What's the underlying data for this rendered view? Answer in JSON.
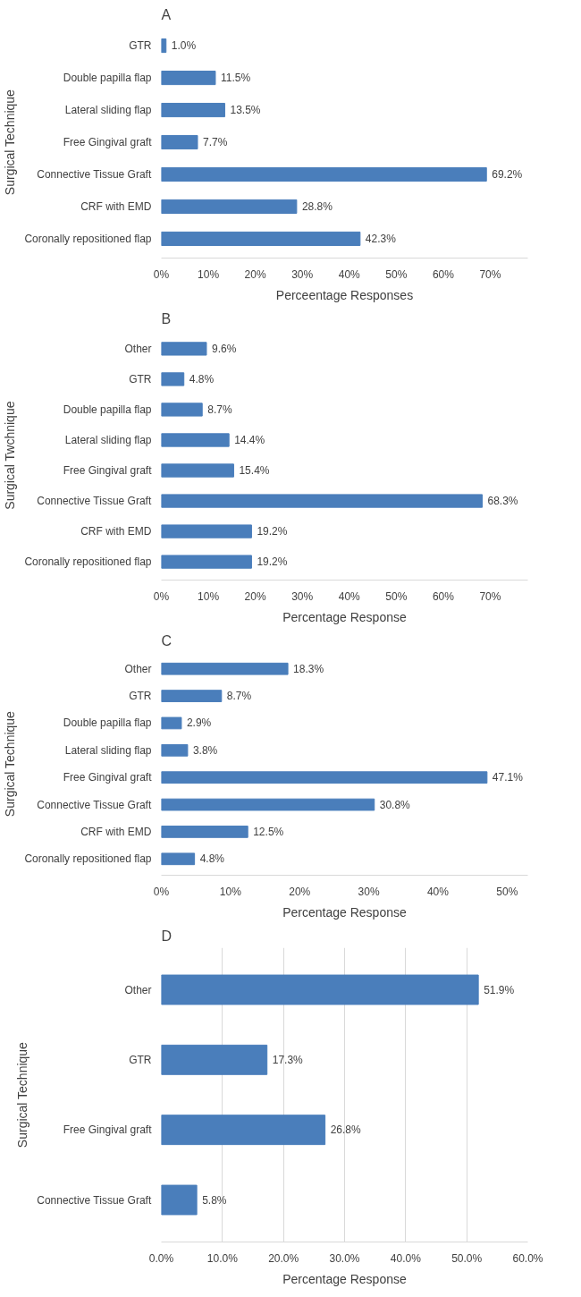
{
  "chart_data": [
    {
      "type": "bar",
      "orientation": "horizontal",
      "title": "A",
      "ylabel": "Surgical Technique",
      "xlabel": "Perceentage Responses",
      "color": "#4a7ebb",
      "grid": false,
      "categories": [
        "GTR",
        "Double papilla flap",
        "Lateral sliding flap",
        "Free Gingival graft",
        "Connective Tissue Graft",
        "CRF with EMD",
        "Coronally repositioned flap"
      ],
      "values": [
        1.0,
        11.5,
        13.5,
        7.7,
        69.2,
        28.8,
        42.3
      ],
      "value_labels": [
        "1.0%",
        "11.5%",
        "13.5%",
        "7.7%",
        "69.2%",
        "28.8%",
        "42.3%"
      ],
      "xlim": [
        0,
        78
      ],
      "xticks": [
        {
          "value": 0,
          "label": "0%"
        },
        {
          "value": 10,
          "label": "10%"
        },
        {
          "value": 20,
          "label": "20%"
        },
        {
          "value": 30,
          "label": "30%"
        },
        {
          "value": 40,
          "label": "40%"
        },
        {
          "value": 50,
          "label": "50%"
        },
        {
          "value": 60,
          "label": "60%"
        },
        {
          "value": 70,
          "label": "70%"
        }
      ]
    },
    {
      "type": "bar",
      "orientation": "horizontal",
      "title": "B",
      "ylabel": "Surgical Twchnique",
      "xlabel": "Percentage Response",
      "color": "#4a7ebb",
      "grid": false,
      "categories": [
        "Other",
        "GTR",
        "Double papilla flap",
        "Lateral sliding flap",
        "Free Gingival graft",
        "Connective Tissue Graft",
        "CRF with EMD",
        "Coronally repositioned flap"
      ],
      "values": [
        9.6,
        4.8,
        8.7,
        14.4,
        15.4,
        68.3,
        19.2,
        19.2
      ],
      "value_labels": [
        "9.6%",
        "4.8%",
        "8.7%",
        "14.4%",
        "15.4%",
        "68.3%",
        "19.2%",
        "19.2%"
      ],
      "xlim": [
        0,
        78
      ],
      "xticks": [
        {
          "value": 0,
          "label": "0%"
        },
        {
          "value": 10,
          "label": "10%"
        },
        {
          "value": 20,
          "label": "20%"
        },
        {
          "value": 30,
          "label": "30%"
        },
        {
          "value": 40,
          "label": "40%"
        },
        {
          "value": 50,
          "label": "50%"
        },
        {
          "value": 60,
          "label": "60%"
        },
        {
          "value": 70,
          "label": "70%"
        }
      ]
    },
    {
      "type": "bar",
      "orientation": "horizontal",
      "title": "C",
      "ylabel": "Surgical Technique",
      "xlabel": "Percentage Response",
      "color": "#4a7ebb",
      "grid": false,
      "categories": [
        "Other",
        "GTR",
        "Double papilla flap",
        "Lateral sliding flap",
        "Free Gingival graft",
        "Connective Tissue Graft",
        "CRF with EMD",
        "Coronally repositioned flap"
      ],
      "values": [
        18.3,
        8.7,
        2.9,
        3.8,
        47.1,
        30.8,
        12.5,
        4.8
      ],
      "value_labels": [
        "18.3%",
        "8.7%",
        "2.9%",
        "3.8%",
        "47.1%",
        "30.8%",
        "12.5%",
        "4.8%"
      ],
      "xlim": [
        0,
        53
      ],
      "xticks": [
        {
          "value": 0,
          "label": "0%"
        },
        {
          "value": 10,
          "label": "10%"
        },
        {
          "value": 20,
          "label": "20%"
        },
        {
          "value": 30,
          "label": "30%"
        },
        {
          "value": 40,
          "label": "40%"
        },
        {
          "value": 50,
          "label": "50%"
        }
      ]
    },
    {
      "type": "bar",
      "orientation": "horizontal",
      "title": "D",
      "ylabel": "Surgical Technique",
      "xlabel": "Percentage Response",
      "color": "#4a7ebb",
      "grid": "x",
      "categories": [
        "Other",
        "GTR",
        "Free Gingival graft",
        "Connective Tissue Graft"
      ],
      "values": [
        51.9,
        17.3,
        26.8,
        5.8
      ],
      "value_labels": [
        "51.9%",
        "17.3%",
        "26.8%",
        "5.8%"
      ],
      "xlim": [
        0,
        60
      ],
      "xticks": [
        {
          "value": 0,
          "label": "0.0%"
        },
        {
          "value": 10,
          "label": "10.0%"
        },
        {
          "value": 20,
          "label": "20.0%"
        },
        {
          "value": 30,
          "label": "30.0%"
        },
        {
          "value": 40,
          "label": "40.0%"
        },
        {
          "value": 50,
          "label": "50.0%"
        },
        {
          "value": 60,
          "label": "60.0%"
        }
      ]
    }
  ]
}
